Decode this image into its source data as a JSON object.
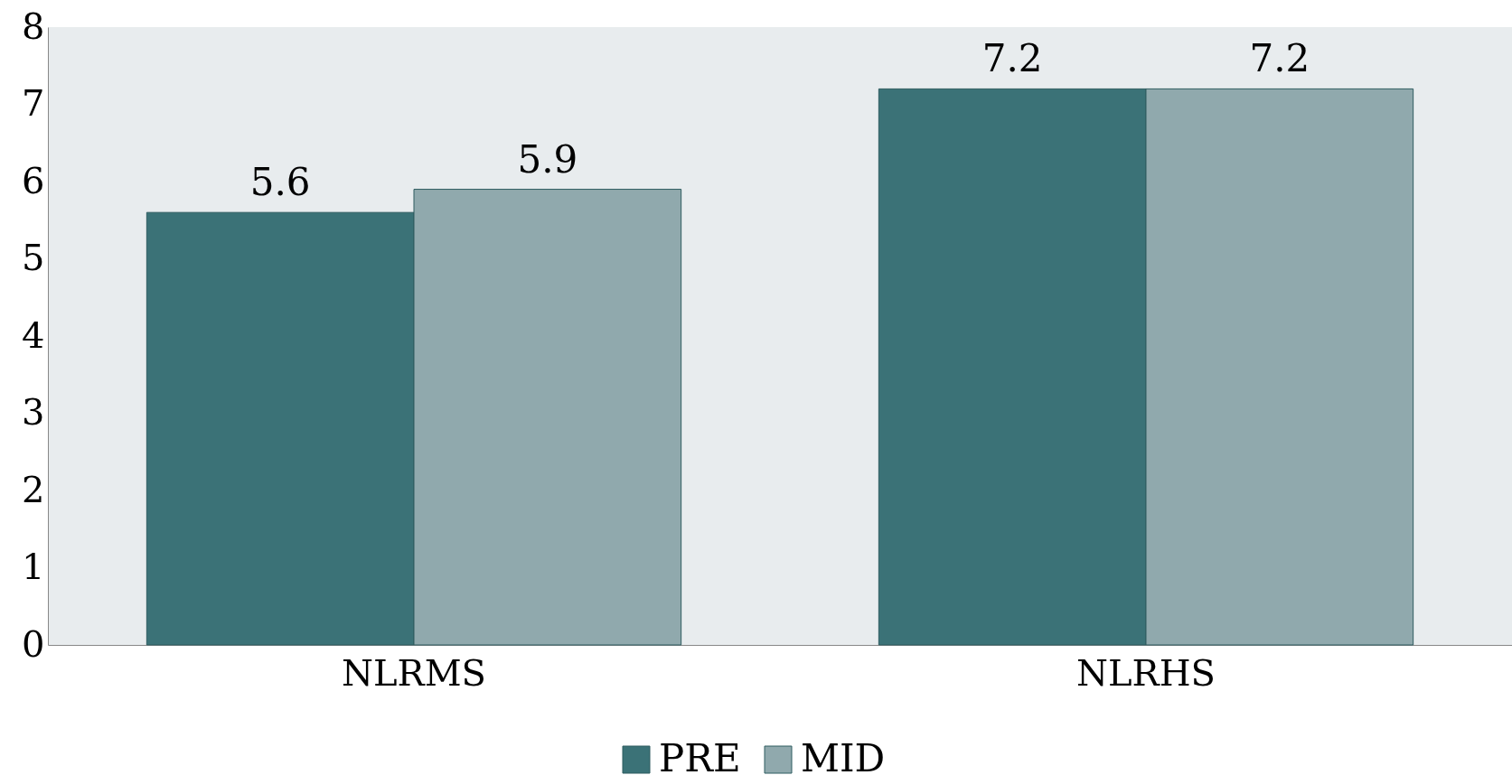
{
  "chart_data": {
    "type": "bar",
    "categories": [
      "NLRMS",
      "NLRHS"
    ],
    "series": [
      {
        "name": "PRE",
        "color": "#3b7277",
        "values": [
          5.6,
          7.2
        ]
      },
      {
        "name": "MID",
        "color": "#90a9ad",
        "values": [
          5.9,
          7.2
        ]
      }
    ],
    "ylim": [
      0,
      8
    ],
    "yticks": [
      0,
      1,
      2,
      3,
      4,
      5,
      6,
      7,
      8
    ],
    "grid": false,
    "legend": "bottom",
    "data_labels": true
  }
}
